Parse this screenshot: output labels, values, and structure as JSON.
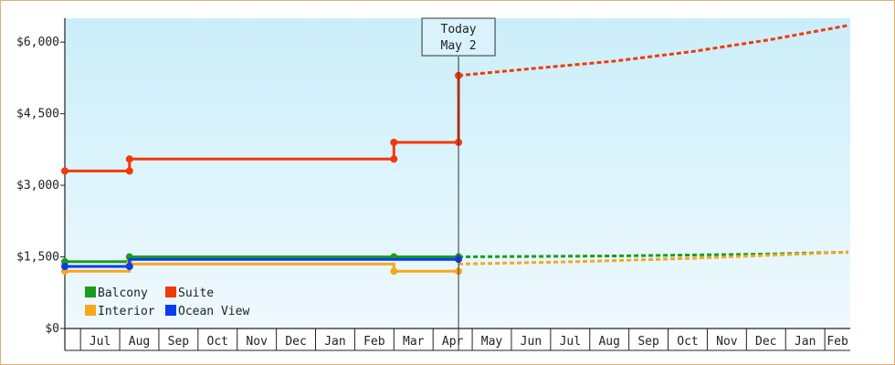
{
  "chart_data": {
    "type": "line",
    "title": "",
    "xlabel": "",
    "ylabel": "",
    "ylim": [
      0,
      6500
    ],
    "y_ticks": [
      0,
      1500,
      3000,
      4500,
      6000
    ],
    "y_tick_labels": [
      "$0",
      "$1,500",
      "$3,000",
      "$4,500",
      "$6,000"
    ],
    "x_tick_labels": [
      "Jul",
      "Aug",
      "Sep",
      "Oct",
      "Nov",
      "Dec",
      "Jan",
      "Feb",
      "Mar",
      "Apr",
      "May",
      "Jun",
      "Jul",
      "Aug",
      "Sep",
      "Oct",
      "Nov",
      "Dec",
      "Jan",
      "Feb"
    ],
    "x_unit": "months since start of June (year 1)",
    "today": {
      "line1": "Today",
      "line2": "May 2",
      "x": 10.05
    },
    "grid": false,
    "legend_position": "bottom-left",
    "series": [
      {
        "name": "Balcony",
        "color": "#1a9e1a",
        "historical": [
          [
            0,
            1400
          ],
          [
            1.65,
            1400
          ],
          [
            1.65,
            1500
          ],
          [
            8.4,
            1500
          ],
          [
            10.05,
            1500
          ]
        ],
        "points": [
          [
            0,
            1400
          ],
          [
            1.65,
            1500
          ],
          [
            8.4,
            1500
          ],
          [
            10.05,
            1500
          ]
        ],
        "forecast": [
          [
            10.05,
            1500
          ],
          [
            14,
            1520
          ],
          [
            18,
            1560
          ],
          [
            20,
            1600
          ]
        ]
      },
      {
        "name": "Suite",
        "color": "#f03a0a",
        "historical": [
          [
            0,
            3300
          ],
          [
            1.65,
            3300
          ],
          [
            1.65,
            3550
          ],
          [
            8.4,
            3550
          ],
          [
            8.4,
            3900
          ],
          [
            10.05,
            3900
          ],
          [
            10.05,
            5300
          ]
        ],
        "points": [
          [
            0,
            3300
          ],
          [
            1.65,
            3300
          ],
          [
            1.65,
            3550
          ],
          [
            8.4,
            3550
          ],
          [
            8.4,
            3900
          ],
          [
            10.05,
            3900
          ],
          [
            10.05,
            5300
          ]
        ],
        "forecast": [
          [
            10.05,
            5300
          ],
          [
            12,
            5450
          ],
          [
            14,
            5600
          ],
          [
            16,
            5800
          ],
          [
            18,
            6050
          ],
          [
            20,
            6350
          ]
        ]
      },
      {
        "name": "Interior",
        "color": "#f5a81e",
        "historical": [
          [
            0,
            1200
          ],
          [
            1.65,
            1200
          ],
          [
            1.65,
            1350
          ],
          [
            8.4,
            1350
          ],
          [
            8.4,
            1200
          ],
          [
            10.05,
            1200
          ]
        ],
        "points": [
          [
            0,
            1200
          ],
          [
            1.65,
            1350
          ],
          [
            8.4,
            1200
          ],
          [
            10.05,
            1200
          ]
        ],
        "forecast": [
          [
            10.05,
            1350
          ],
          [
            13,
            1400
          ],
          [
            16,
            1470
          ],
          [
            20,
            1600
          ]
        ]
      },
      {
        "name": "Ocean View",
        "color": "#0a3cf0",
        "historical": [
          [
            0,
            1300
          ],
          [
            1.65,
            1300
          ],
          [
            1.65,
            1450
          ],
          [
            8.4,
            1450
          ],
          [
            10.05,
            1450
          ]
        ],
        "points": [
          [
            0,
            1300
          ],
          [
            1.65,
            1300
          ],
          [
            10.05,
            1450
          ]
        ],
        "forecast": []
      }
    ]
  }
}
